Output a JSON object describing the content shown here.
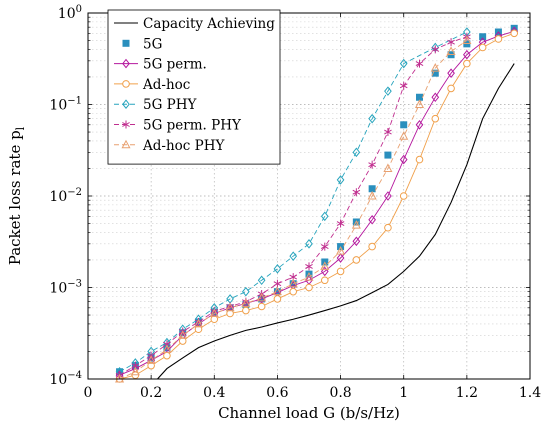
{
  "chart_data": {
    "type": "line",
    "xlabel": "Channel load G (b/s/Hz)",
    "ylabel": "Packet loss rate p",
    "ylabel_sub": "l",
    "xlim": [
      0,
      1.4
    ],
    "ylim": [
      0.0001,
      1
    ],
    "y_scale": "log",
    "grid": true,
    "legend_position": "top-left",
    "x_ticks": [
      0,
      0.2,
      0.4,
      0.6,
      0.8,
      1,
      1.2,
      1.4
    ],
    "x_tick_labels": [
      "0",
      "0.2",
      "0.4",
      "0.6",
      "0.8",
      "1",
      "1.2",
      "1.4"
    ],
    "y_ticks": [
      0.0001,
      0.001,
      0.01,
      0.1,
      1
    ],
    "y_tick_labels": [
      {
        "base": "10",
        "exp": "−4"
      },
      {
        "base": "10",
        "exp": "−3"
      },
      {
        "base": "10",
        "exp": "−2"
      },
      {
        "base": "10",
        "exp": "−1"
      },
      {
        "base": "10",
        "exp": "0"
      }
    ],
    "series": [
      {
        "name": "Capacity Achieving",
        "color": "#000000",
        "style": "solid",
        "marker": "none",
        "x": [
          0.22,
          0.25,
          0.3,
          0.35,
          0.4,
          0.45,
          0.5,
          0.55,
          0.6,
          0.65,
          0.7,
          0.75,
          0.8,
          0.85,
          0.9,
          0.95,
          1.0,
          1.05,
          1.1,
          1.15,
          1.2,
          1.25,
          1.3,
          1.35
        ],
        "y": [
          0.0001,
          0.00013,
          0.00017,
          0.00022,
          0.00026,
          0.0003,
          0.00034,
          0.00037,
          0.00041,
          0.00045,
          0.0005,
          0.00056,
          0.00063,
          0.00072,
          0.00088,
          0.00108,
          0.0015,
          0.0022,
          0.0038,
          0.0085,
          0.022,
          0.07,
          0.15,
          0.28
        ]
      },
      {
        "name": "5G",
        "color": "#2a8fbd",
        "style": "none",
        "marker": "square",
        "x": [
          0.1,
          0.15,
          0.2,
          0.25,
          0.3,
          0.35,
          0.4,
          0.45,
          0.5,
          0.55,
          0.6,
          0.65,
          0.7,
          0.75,
          0.8,
          0.85,
          0.9,
          0.95,
          1.0,
          1.05,
          1.1,
          1.15,
          1.2,
          1.25,
          1.3,
          1.35
        ],
        "y": [
          0.00012,
          0.00014,
          0.00017,
          0.00022,
          0.00032,
          0.00042,
          0.00054,
          0.0006,
          0.00065,
          0.00075,
          0.0009,
          0.0011,
          0.0014,
          0.0019,
          0.0028,
          0.0052,
          0.012,
          0.028,
          0.06,
          0.12,
          0.22,
          0.35,
          0.46,
          0.55,
          0.62,
          0.68
        ]
      },
      {
        "name": "5G perm.",
        "color": "#b5179e",
        "style": "solid",
        "marker": "diamond",
        "x": [
          0.1,
          0.15,
          0.2,
          0.25,
          0.3,
          0.35,
          0.4,
          0.45,
          0.5,
          0.55,
          0.6,
          0.65,
          0.7,
          0.75,
          0.8,
          0.85,
          0.9,
          0.95,
          1.0,
          1.05,
          1.1,
          1.15,
          1.2,
          1.25,
          1.3,
          1.35
        ],
        "y": [
          0.00011,
          0.00013,
          0.00016,
          0.0002,
          0.0003,
          0.0004,
          0.00052,
          0.0006,
          0.00067,
          0.00075,
          0.00088,
          0.00105,
          0.0012,
          0.0015,
          0.0021,
          0.0032,
          0.0055,
          0.01,
          0.025,
          0.06,
          0.12,
          0.22,
          0.35,
          0.48,
          0.56,
          0.63
        ]
      },
      {
        "name": "Ad-hoc",
        "color": "#f0a04b",
        "style": "solid",
        "marker": "circle",
        "x": [
          0.1,
          0.15,
          0.2,
          0.25,
          0.3,
          0.35,
          0.4,
          0.45,
          0.5,
          0.55,
          0.6,
          0.65,
          0.7,
          0.75,
          0.8,
          0.85,
          0.9,
          0.95,
          1.0,
          1.05,
          1.1,
          1.15,
          1.2,
          1.25,
          1.3,
          1.35
        ],
        "y": [
          0.0001,
          0.00011,
          0.00014,
          0.00018,
          0.00026,
          0.00035,
          0.00045,
          0.00052,
          0.00056,
          0.00062,
          0.00075,
          0.0009,
          0.001,
          0.0012,
          0.0015,
          0.002,
          0.0028,
          0.0045,
          0.01,
          0.025,
          0.07,
          0.15,
          0.28,
          0.42,
          0.52,
          0.6
        ]
      },
      {
        "name": "5G PHY",
        "color": "#27a4bd",
        "style": "dashed",
        "marker": "diamond",
        "x": [
          0.1,
          0.15,
          0.2,
          0.25,
          0.3,
          0.35,
          0.4,
          0.45,
          0.5,
          0.55,
          0.6,
          0.65,
          0.7,
          0.75,
          0.8,
          0.85,
          0.9,
          0.95,
          1.0,
          1.1,
          1.2
        ],
        "y": [
          0.00012,
          0.00015,
          0.0002,
          0.00025,
          0.00035,
          0.00045,
          0.0006,
          0.00075,
          0.0009,
          0.0012,
          0.0016,
          0.0022,
          0.003,
          0.006,
          0.015,
          0.03,
          0.07,
          0.14,
          0.28,
          0.42,
          0.62
        ]
      },
      {
        "name": "5G perm. PHY",
        "color": "#c02e8f",
        "style": "dashed",
        "marker": "star",
        "x": [
          0.1,
          0.15,
          0.2,
          0.25,
          0.3,
          0.35,
          0.4,
          0.45,
          0.5,
          0.55,
          0.6,
          0.65,
          0.7,
          0.75,
          0.8,
          0.85,
          0.9,
          0.95,
          1.0,
          1.05,
          1.1,
          1.15,
          1.2
        ],
        "y": [
          0.00011,
          0.00014,
          0.00018,
          0.00024,
          0.00033,
          0.00042,
          0.00055,
          0.00062,
          0.0007,
          0.00085,
          0.0011,
          0.0013,
          0.0017,
          0.0028,
          0.005,
          0.011,
          0.022,
          0.05,
          0.16,
          0.28,
          0.4,
          0.48,
          0.55
        ]
      },
      {
        "name": "Ad-hoc PHY",
        "color": "#e8a070",
        "style": "dashed",
        "marker": "triangle",
        "x": [
          0.1,
          0.15,
          0.2,
          0.25,
          0.3,
          0.35,
          0.4,
          0.45,
          0.5,
          0.55,
          0.6,
          0.65,
          0.7,
          0.75,
          0.8,
          0.85,
          0.9,
          0.95,
          1.0,
          1.05,
          1.1,
          1.15,
          1.2
        ],
        "y": [
          0.0001,
          0.00012,
          0.00016,
          0.00021,
          0.0003,
          0.0004,
          0.00052,
          0.0006,
          0.00067,
          0.00077,
          0.0009,
          0.0011,
          0.0013,
          0.0017,
          0.0025,
          0.0048,
          0.01,
          0.02,
          0.045,
          0.1,
          0.25,
          0.38,
          0.5
        ]
      }
    ]
  }
}
